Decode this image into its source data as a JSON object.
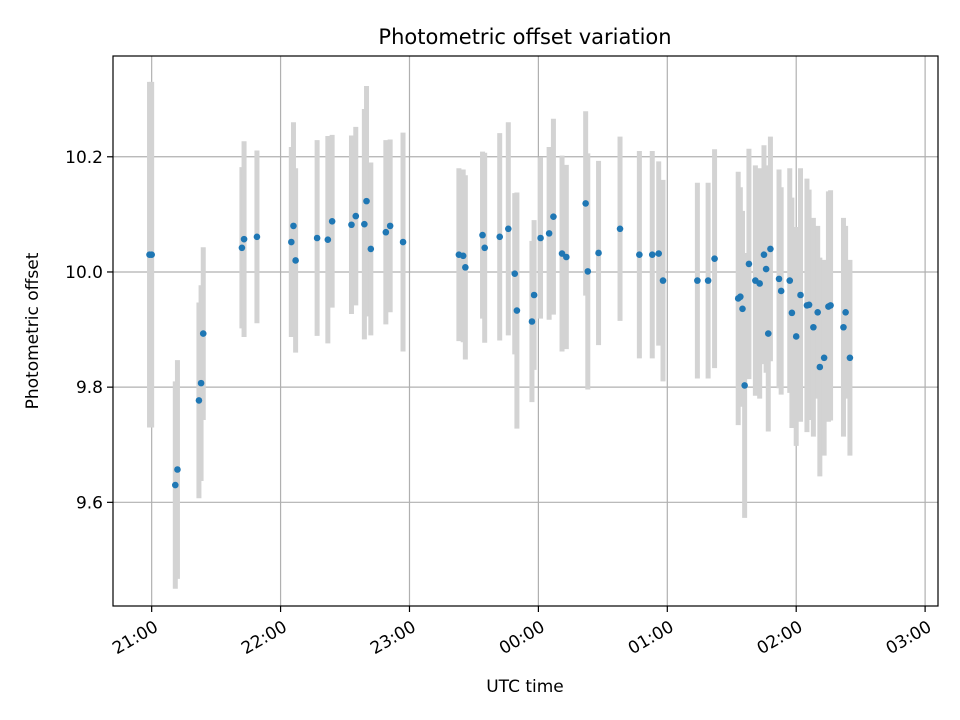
{
  "chart_data": {
    "type": "scatter",
    "title": "Photometric offset variation",
    "xlabel": "UTC time",
    "ylabel": "Photometric offset",
    "x_start": "20:42",
    "x_end": "03:06",
    "ylim": [
      9.42,
      10.375
    ],
    "x_ticks": [
      "21:00",
      "22:00",
      "23:00",
      "00:00",
      "01:00",
      "02:00",
      "03:00"
    ],
    "y_ticks": [
      9.6,
      9.8,
      10.0,
      10.2
    ],
    "y_tick_labels": [
      "9.6",
      "9.8",
      "10.0",
      "10.2"
    ],
    "grid": true,
    "colors": {
      "point": "#1f77b4",
      "errorbar": "#d3d3d3",
      "grid": "#b0b0b0"
    },
    "series": [
      {
        "x": [
          "20:59",
          "21:00",
          "21:11",
          "21:12",
          "21:22",
          "21:23",
          "21:24",
          "21:42",
          "21:43",
          "21:49",
          "22:05",
          "22:06",
          "22:07",
          "22:17",
          "22:22",
          "22:24",
          "22:33",
          "22:35",
          "22:39",
          "22:40",
          "22:42",
          "22:49",
          "22:51",
          "22:57",
          "23:23",
          "23:25",
          "23:26",
          "23:34",
          "23:35",
          "23:42",
          "23:46",
          "23:49",
          "23:50",
          "23:57",
          "23:58",
          "00:01",
          "00:05",
          "00:07",
          "00:11",
          "00:13",
          "00:22",
          "00:23",
          "00:28",
          "00:38",
          "00:47",
          "00:53",
          "00:56",
          "00:58",
          "01:14",
          "01:19",
          "01:22",
          "01:33",
          "01:34",
          "01:35",
          "01:36",
          "01:38",
          "01:41",
          "01:43",
          "01:45",
          "01:46",
          "01:47",
          "01:48",
          "01:52",
          "01:53",
          "01:57",
          "01:58",
          "02:00",
          "02:02",
          "02:05",
          "02:06",
          "02:08",
          "02:10",
          "02:11",
          "02:13",
          "02:15",
          "02:16",
          "02:22",
          "02:23",
          "02:25"
        ],
        "y": [
          10.03,
          10.03,
          9.63,
          9.657,
          9.777,
          9.807,
          9.893,
          10.042,
          10.057,
          10.061,
          10.052,
          10.08,
          10.02,
          10.059,
          10.056,
          10.088,
          10.082,
          10.097,
          10.083,
          10.123,
          10.04,
          10.069,
          10.08,
          10.052,
          10.03,
          10.028,
          10.008,
          10.064,
          10.042,
          10.061,
          10.075,
          9.997,
          9.933,
          9.914,
          9.96,
          10.059,
          10.067,
          10.096,
          10.032,
          10.026,
          10.119,
          10.001,
          10.033,
          10.075,
          10.03,
          10.03,
          10.032,
          9.985,
          9.985,
          9.985,
          10.023,
          9.954,
          9.957,
          9.936,
          9.803,
          10.014,
          9.985,
          9.98,
          10.03,
          10.005,
          9.893,
          10.04,
          9.988,
          9.967,
          9.985,
          9.929,
          9.888,
          9.96,
          9.942,
          9.943,
          9.904,
          9.93,
          9.835,
          9.851,
          9.94,
          9.942,
          9.904,
          9.93,
          9.851
        ],
        "yerr": [
          0.3,
          0.3,
          0.18,
          0.19,
          0.17,
          0.17,
          0.15,
          0.14,
          0.17,
          0.15,
          0.165,
          0.18,
          0.16,
          0.17,
          0.18,
          0.15,
          0.155,
          0.155,
          0.2,
          0.2,
          0.15,
          0.16,
          0.15,
          0.19,
          0.15,
          0.15,
          0.16,
          0.145,
          0.165,
          0.18,
          0.185,
          0.14,
          0.205,
          0.14,
          0.13,
          0.14,
          0.15,
          0.17,
          0.17,
          0.16,
          0.16,
          0.205,
          0.16,
          0.16,
          0.18,
          0.18,
          0.16,
          0.175,
          0.17,
          0.17,
          0.19,
          0.22,
          0.19,
          0.17,
          0.23,
          0.2,
          0.2,
          0.2,
          0.19,
          0.18,
          0.17,
          0.195,
          0.19,
          0.18,
          0.195,
          0.2,
          0.19,
          0.22,
          0.22,
          0.2,
          0.19,
          0.15,
          0.19,
          0.17,
          0.2,
          0.2,
          0.19,
          0.15,
          0.17
        ]
      }
    ]
  }
}
